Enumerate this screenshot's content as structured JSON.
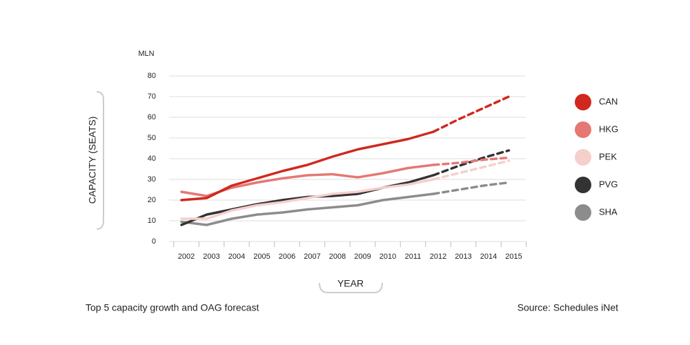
{
  "chart_data": {
    "type": "line",
    "y_unit": "MLN",
    "ylabel": "CAPACITY (SEATS)",
    "xlabel": "YEAR",
    "caption": "Top 5 capacity growth and OAG forecast",
    "source": "Source: Schedules iNet",
    "x": [
      "2002",
      "2003",
      "2004",
      "2005",
      "2006",
      "2007",
      "2008",
      "2009",
      "2010",
      "2011",
      "2012",
      "2013",
      "2014",
      "2015"
    ],
    "dashed_from": "2012",
    "ylim": [
      0,
      80
    ],
    "yticks": [
      0,
      10,
      20,
      30,
      40,
      50,
      60,
      70,
      80
    ],
    "grid": true,
    "legend": "right",
    "series": [
      {
        "name": "CAN",
        "color": "#d0281e",
        "values": [
          20,
          21,
          27,
          30.5,
          34,
          37,
          41,
          44.5,
          47,
          49.5,
          53,
          59,
          64.5,
          70
        ]
      },
      {
        "name": "HKG",
        "color": "#e57873",
        "values": [
          24,
          22,
          26,
          28.5,
          30.5,
          32,
          32.5,
          31,
          33,
          35.5,
          37,
          38,
          39.5,
          40.5
        ]
      },
      {
        "name": "PEK",
        "color": "#f5cfcc",
        "values": [
          11,
          11,
          15,
          17.5,
          19,
          21,
          23,
          24,
          26,
          27.5,
          30,
          33,
          36,
          39
        ]
      },
      {
        "name": "PVG",
        "color": "#333333",
        "values": [
          8,
          13,
          15.5,
          18,
          20,
          21.5,
          22,
          23,
          26,
          28.5,
          32,
          36.5,
          40.5,
          44
        ]
      },
      {
        "name": "SHA",
        "color": "#8c8c8c",
        "values": [
          9.5,
          8,
          11,
          13,
          14,
          15.5,
          16.5,
          17.5,
          20,
          21.5,
          23,
          25,
          27,
          28.5
        ]
      }
    ]
  }
}
